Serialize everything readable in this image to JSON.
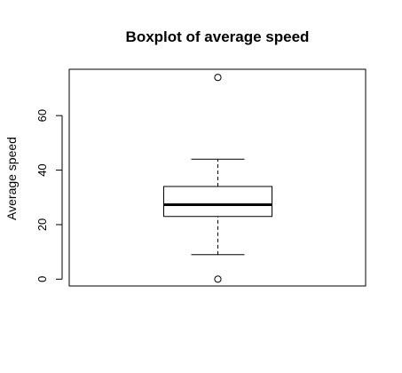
{
  "chart_data": {
    "type": "boxplot",
    "title": "Boxplot of average speed",
    "xlabel": "",
    "ylabel": "Average speed",
    "ylim": [
      -2.5,
      77
    ],
    "yticks": [
      0,
      20,
      40,
      60
    ],
    "grid": false,
    "box": {
      "whisker_low": 9,
      "q1": 23,
      "median": 27.3,
      "q3": 34,
      "whisker_high": 44
    },
    "outliers": [
      0,
      74
    ]
  },
  "colors": {
    "stroke": "#000000",
    "background": "#ffffff"
  }
}
